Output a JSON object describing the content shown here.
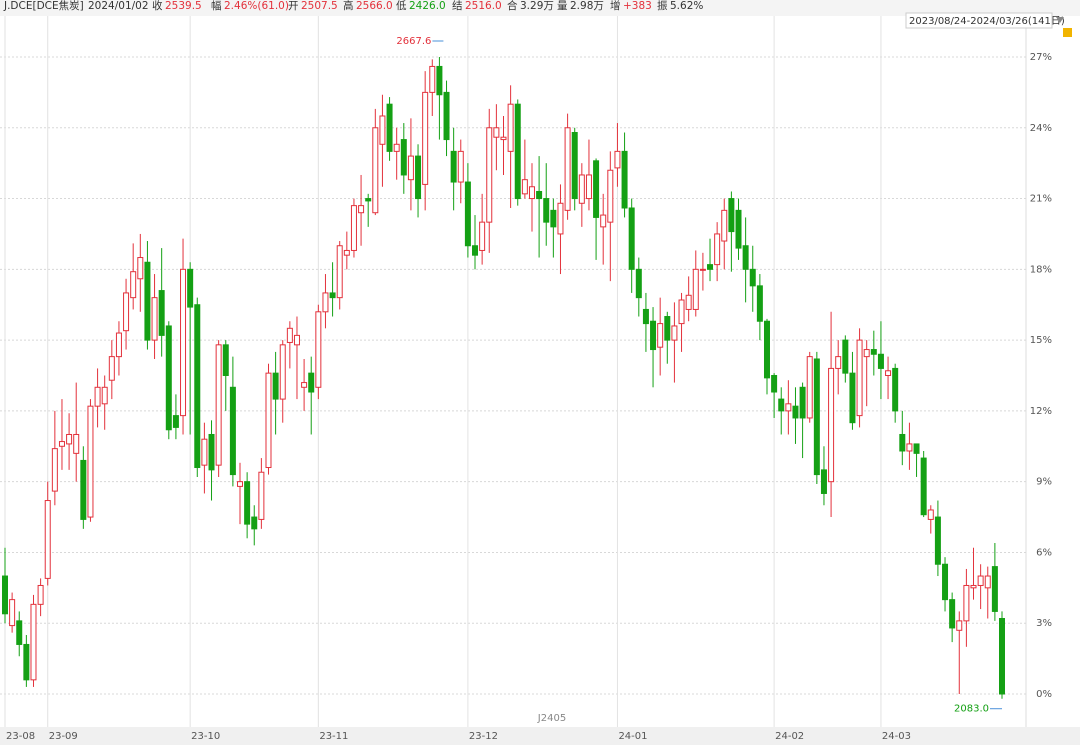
{
  "header": {
    "symbol": "J.DCE[DCE焦炭]",
    "date": "2024/01/02",
    "fields": [
      {
        "name": "收",
        "value": "2539.5",
        "tone": "up"
      },
      {
        "name": "幅",
        "value": "2.46%(61.0)",
        "tone": "up"
      },
      {
        "name": "开",
        "value": "2507.5",
        "tone": "up"
      },
      {
        "name": "高",
        "value": "2566.0",
        "tone": "up"
      },
      {
        "name": "低",
        "value": "2426.0",
        "tone": "down"
      },
      {
        "name": "结",
        "value": "2516.0",
        "tone": "up"
      },
      {
        "name": "合",
        "value": "3.29万",
        "tone": "flat"
      },
      {
        "name": "量",
        "value": "2.98万",
        "tone": "flat"
      },
      {
        "name": "增",
        "value": "+383",
        "tone": "up"
      },
      {
        "name": "振",
        "value": "5.62%",
        "tone": "flat"
      }
    ],
    "range": "2023/08/24-2024/03/26(141日)"
  },
  "chart_data": {
    "type": "candlestick",
    "up_color": "#e3313b",
    "down_color": "#14a014",
    "grid": true,
    "contract_label": "J2405",
    "high_label": "2667.6",
    "low_label": "2083.0",
    "ylim": [
      -0.5,
      27.8
    ],
    "yticks": [
      {
        "value": 0,
        "label": "0%"
      },
      {
        "value": 3,
        "label": "3%"
      },
      {
        "value": 6,
        "label": "6%"
      },
      {
        "value": 9,
        "label": "9%"
      },
      {
        "value": 12,
        "label": "12%"
      },
      {
        "value": 15,
        "label": "15%"
      },
      {
        "value": 18,
        "label": "18%"
      },
      {
        "value": 21,
        "label": "21%"
      },
      {
        "value": 24,
        "label": "24%"
      },
      {
        "value": 27,
        "label": "27%"
      }
    ],
    "xticks": [
      {
        "value": 0,
        "label": "23-08"
      },
      {
        "value": 6,
        "label": "23-09"
      },
      {
        "value": 26,
        "label": "23-10"
      },
      {
        "value": 44,
        "label": "23-11"
      },
      {
        "value": 65,
        "label": "23-12"
      },
      {
        "value": 86,
        "label": "24-01"
      },
      {
        "value": 108,
        "label": "24-02"
      },
      {
        "value": 123,
        "label": "24-03"
      }
    ],
    "candles": [
      [
        5.0,
        6.2,
        3.0,
        3.4
      ],
      [
        2.9,
        4.3,
        2.6,
        4.0
      ],
      [
        3.1,
        3.5,
        1.6,
        2.1
      ],
      [
        2.1,
        2.5,
        0.3,
        0.6
      ],
      [
        0.6,
        4.2,
        0.3,
        3.8
      ],
      [
        3.8,
        4.9,
        3.3,
        4.6
      ],
      [
        4.9,
        9.0,
        4.6,
        8.2
      ],
      [
        8.6,
        12.0,
        8.0,
        10.4
      ],
      [
        10.5,
        12.5,
        9.5,
        10.7
      ],
      [
        10.6,
        11.9,
        9.5,
        11.0
      ],
      [
        10.2,
        13.2,
        9.0,
        11.0
      ],
      [
        9.9,
        10.5,
        7.0,
        7.4
      ],
      [
        7.5,
        12.5,
        7.3,
        12.2
      ],
      [
        12.2,
        13.8,
        11.3,
        13.0
      ],
      [
        12.3,
        13.5,
        11.2,
        13.0
      ],
      [
        13.3,
        15.0,
        12.5,
        14.3
      ],
      [
        14.3,
        15.8,
        13.5,
        15.3
      ],
      [
        15.4,
        17.6,
        14.6,
        17.0
      ],
      [
        16.8,
        19.1,
        16.3,
        17.9
      ],
      [
        17.6,
        19.5,
        16.2,
        18.5
      ],
      [
        18.3,
        19.2,
        14.6,
        15.0
      ],
      [
        15.0,
        17.8,
        14.2,
        16.8
      ],
      [
        17.1,
        18.9,
        14.3,
        15.2
      ],
      [
        15.6,
        15.8,
        10.8,
        11.2
      ],
      [
        11.8,
        12.7,
        10.8,
        11.3
      ],
      [
        11.8,
        19.3,
        11.0,
        18.0
      ],
      [
        18.0,
        18.3,
        11.0,
        16.4
      ],
      [
        16.5,
        16.8,
        9.2,
        9.6
      ],
      [
        9.7,
        11.5,
        8.5,
        10.8
      ],
      [
        11.0,
        11.6,
        8.2,
        9.5
      ],
      [
        9.7,
        15.0,
        9.2,
        14.8
      ],
      [
        14.8,
        15.0,
        12.0,
        13.5
      ],
      [
        13.0,
        14.3,
        8.8,
        9.3
      ],
      [
        8.8,
        9.8,
        7.2,
        9.0
      ],
      [
        9.0,
        9.4,
        6.6,
        7.2
      ],
      [
        7.5,
        8.0,
        6.3,
        7.0
      ],
      [
        7.4,
        10.0,
        7.0,
        9.4
      ],
      [
        9.6,
        14.0,
        9.3,
        13.6
      ],
      [
        13.6,
        14.5,
        11.0,
        12.5
      ],
      [
        12.5,
        15.0,
        11.5,
        14.8
      ],
      [
        14.9,
        15.8,
        13.8,
        15.5
      ],
      [
        14.8,
        16.0,
        12.5,
        15.2
      ],
      [
        13.0,
        14.2,
        12.0,
        13.2
      ],
      [
        13.6,
        14.3,
        11.0,
        12.8
      ],
      [
        13.0,
        16.5,
        12.5,
        16.2
      ],
      [
        16.2,
        17.8,
        15.5,
        17.0
      ],
      [
        17.0,
        18.3,
        16.0,
        16.8
      ],
      [
        16.8,
        19.2,
        16.3,
        19.0
      ],
      [
        18.6,
        19.6,
        18.0,
        18.8
      ],
      [
        18.8,
        21.0,
        18.5,
        20.7
      ],
      [
        20.4,
        22.0,
        19.0,
        20.7
      ],
      [
        21.0,
        21.2,
        19.8,
        20.9
      ],
      [
        20.4,
        24.8,
        20.3,
        24.0
      ],
      [
        23.3,
        25.4,
        21.5,
        24.5
      ],
      [
        25.0,
        25.3,
        22.6,
        23.0
      ],
      [
        23.0,
        24.0,
        21.8,
        23.3
      ],
      [
        23.5,
        24.2,
        21.2,
        22.0
      ],
      [
        21.8,
        24.4,
        20.5,
        22.8
      ],
      [
        22.8,
        23.3,
        20.2,
        21.0
      ],
      [
        21.6,
        26.4,
        20.5,
        25.5
      ],
      [
        25.5,
        26.9,
        24.5,
        26.6
      ],
      [
        26.6,
        27.0,
        23.5,
        25.4
      ],
      [
        25.5,
        26.0,
        22.8,
        23.5
      ],
      [
        23.0,
        24.0,
        20.5,
        21.7
      ],
      [
        21.7,
        23.5,
        20.8,
        23.0
      ],
      [
        21.7,
        22.5,
        18.5,
        19.0
      ],
      [
        19.0,
        20.3,
        18.0,
        18.6
      ],
      [
        18.8,
        21.2,
        18.2,
        20.0
      ],
      [
        20.0,
        24.8,
        18.7,
        24.0
      ],
      [
        23.6,
        25.0,
        22.2,
        24.0
      ],
      [
        23.5,
        24.5,
        22.0,
        23.6
      ],
      [
        23.0,
        25.8,
        20.6,
        25.0
      ],
      [
        25.0,
        25.2,
        20.7,
        21.0
      ],
      [
        21.2,
        23.5,
        21.0,
        21.8
      ],
      [
        21.0,
        22.5,
        19.6,
        21.5
      ],
      [
        21.3,
        22.8,
        18.5,
        21.0
      ],
      [
        21.0,
        22.5,
        19.0,
        20.0
      ],
      [
        20.5,
        21.0,
        18.5,
        19.8
      ],
      [
        19.5,
        21.6,
        17.8,
        20.8
      ],
      [
        20.5,
        24.6,
        20.1,
        24.0
      ],
      [
        23.8,
        24.0,
        20.5,
        21.0
      ],
      [
        20.8,
        22.5,
        19.8,
        22.0
      ],
      [
        21.0,
        23.5,
        20.5,
        22.0
      ],
      [
        22.6,
        22.7,
        18.4,
        20.2
      ],
      [
        19.8,
        21.2,
        18.2,
        20.3
      ],
      [
        20.0,
        23.0,
        17.5,
        22.2
      ],
      [
        22.3,
        24.2,
        21.5,
        23.0
      ],
      [
        23.0,
        23.8,
        20.2,
        20.6
      ],
      [
        20.6,
        21.0,
        17.0,
        18.0
      ],
      [
        18.0,
        18.5,
        16.0,
        16.8
      ],
      [
        16.3,
        17.0,
        14.5,
        15.7
      ],
      [
        15.8,
        16.4,
        13.0,
        14.6
      ],
      [
        14.7,
        16.8,
        13.5,
        15.7
      ],
      [
        16.0,
        16.2,
        14.0,
        15.0
      ],
      [
        15.0,
        16.6,
        13.2,
        15.6
      ],
      [
        15.7,
        17.0,
        14.5,
        16.7
      ],
      [
        16.3,
        17.7,
        15.8,
        16.9
      ],
      [
        16.3,
        18.8,
        16.0,
        18.0
      ],
      [
        18.0,
        18.7,
        17.1,
        18.0
      ],
      [
        18.2,
        19.3,
        17.5,
        18.0
      ],
      [
        18.2,
        20.0,
        17.5,
        19.5
      ],
      [
        19.2,
        21.0,
        18.0,
        20.5
      ],
      [
        21.0,
        21.3,
        17.9,
        19.6
      ],
      [
        20.5,
        21.0,
        18.4,
        18.9
      ],
      [
        19.0,
        20.2,
        16.6,
        18.0
      ],
      [
        18.0,
        19.0,
        16.2,
        17.3
      ],
      [
        17.3,
        17.8,
        15.0,
        15.8
      ],
      [
        15.8,
        15.9,
        12.7,
        13.4
      ],
      [
        13.5,
        13.6,
        11.7,
        12.8
      ],
      [
        12.5,
        13.0,
        11.0,
        12.0
      ],
      [
        12.0,
        13.3,
        11.0,
        12.3
      ],
      [
        12.2,
        13.0,
        10.6,
        11.7
      ],
      [
        13.0,
        13.2,
        10.0,
        11.7
      ],
      [
        11.7,
        14.5,
        11.5,
        14.3
      ],
      [
        14.2,
        14.5,
        8.9,
        9.3
      ],
      [
        9.5,
        10.5,
        8.0,
        8.5
      ],
      [
        9.0,
        16.2,
        7.5,
        13.8
      ],
      [
        13.8,
        15.0,
        12.7,
        14.3
      ],
      [
        15.0,
        15.2,
        13.2,
        13.6
      ],
      [
        13.6,
        14.5,
        11.2,
        11.5
      ],
      [
        11.8,
        15.5,
        11.3,
        15.0
      ],
      [
        14.3,
        15.0,
        12.2,
        14.6
      ],
      [
        14.6,
        15.4,
        13.5,
        14.4
      ],
      [
        14.4,
        15.8,
        12.5,
        13.8
      ],
      [
        13.5,
        14.3,
        12.5,
        13.7
      ],
      [
        13.8,
        14.0,
        11.5,
        12.0
      ],
      [
        11.0,
        12.0,
        9.7,
        10.3
      ],
      [
        10.3,
        11.5,
        9.5,
        10.6
      ],
      [
        10.6,
        10.6,
        9.2,
        10.2
      ],
      [
        10.0,
        10.3,
        7.5,
        7.6
      ],
      [
        7.4,
        8.0,
        6.8,
        7.8
      ],
      [
        7.5,
        8.2,
        5.0,
        5.5
      ],
      [
        5.5,
        5.8,
        3.5,
        4.0
      ],
      [
        4.0,
        4.3,
        2.2,
        2.8
      ],
      [
        2.7,
        3.5,
        0.0,
        3.1
      ],
      [
        3.1,
        5.3,
        2.0,
        4.6
      ],
      [
        4.5,
        6.2,
        4.0,
        4.6
      ],
      [
        4.6,
        5.5,
        3.6,
        5.0
      ],
      [
        4.5,
        5.4,
        3.2,
        5.0
      ],
      [
        5.4,
        6.4,
        3.1,
        3.5
      ],
      [
        3.2,
        3.5,
        -0.2,
        0.0
      ]
    ]
  }
}
